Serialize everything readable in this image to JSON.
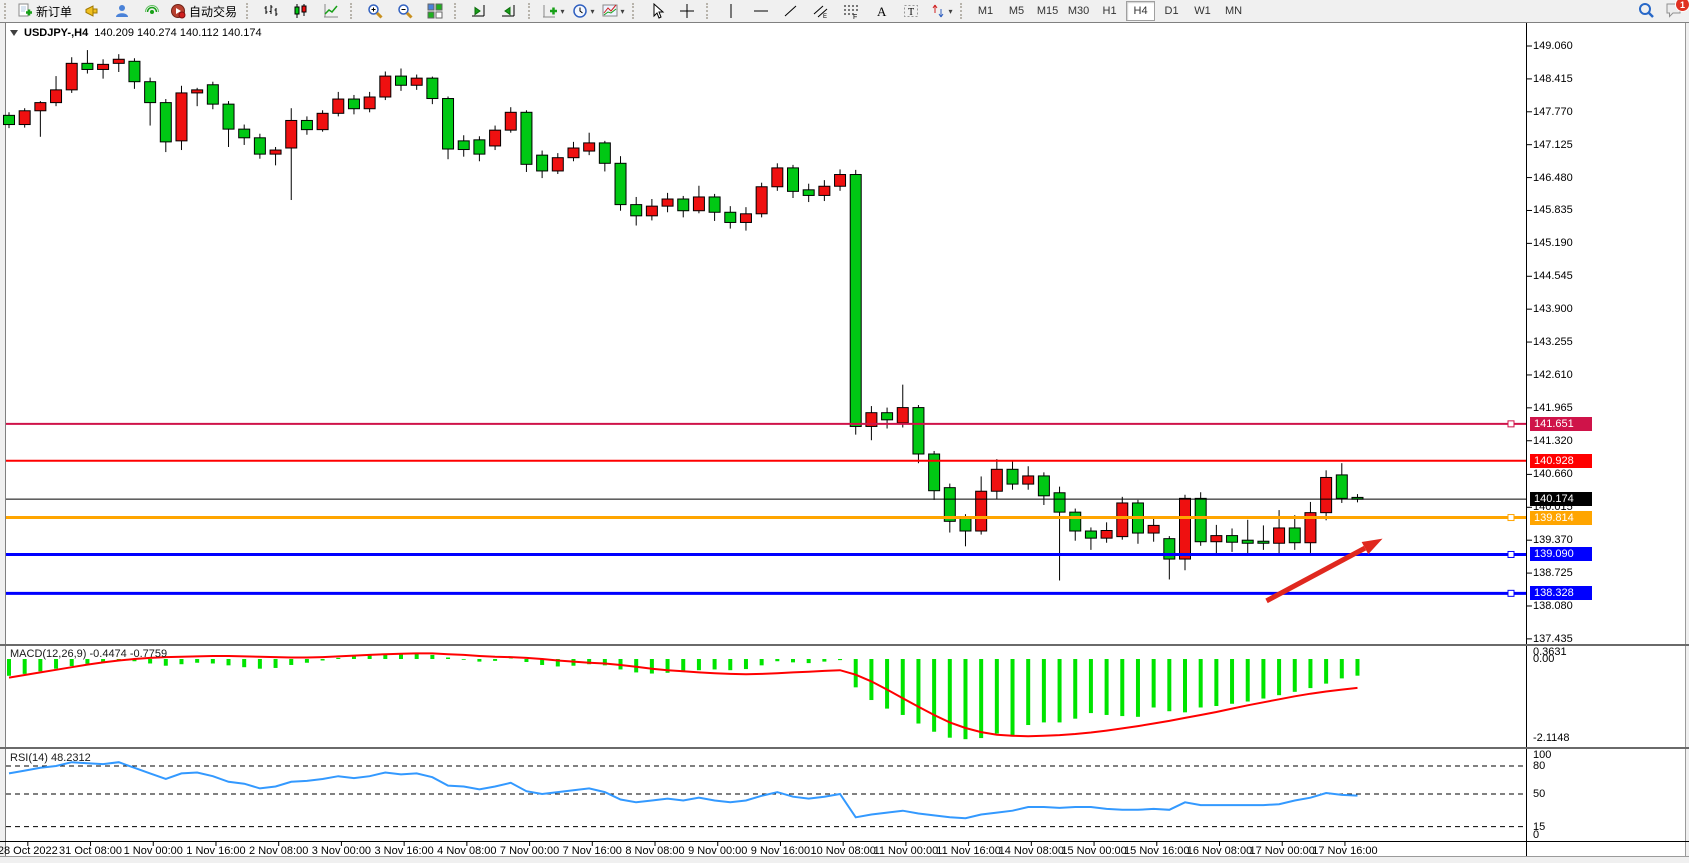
{
  "toolbar": {
    "new_order": "新订单",
    "autotrading": "自动交易",
    "timeframes": [
      "M1",
      "M5",
      "M15",
      "M30",
      "H1",
      "H4",
      "D1",
      "W1",
      "MN"
    ],
    "active_timeframe": "H4",
    "notification_badge": "1"
  },
  "chart_header": {
    "symbol": "USDJPY-,H4",
    "ohlc": "140.209 140.274 140.112 140.174"
  },
  "colors": {
    "candle_up": "#ef1010",
    "candle_down": "#00c814",
    "candle_outline": "#000000",
    "macd_bar": "#00e400",
    "macd_signal": "#ff0000",
    "rsi_line": "#3399ff",
    "arrow": "#e0281e",
    "line_crimson": "#cf1349",
    "line_red": "#ff0000",
    "line_orange": "#ffa500",
    "line_blue": "#0000ff",
    "line_black": "#000000"
  },
  "chart_data": [
    {
      "type": "candlestick",
      "title": "USDJPY- H4",
      "ohlc_current": {
        "open": 140.209,
        "high": 140.274,
        "low": 140.112,
        "close": 140.174
      },
      "y_axis_ticks": [
        "149.060",
        "148.415",
        "147.770",
        "147.125",
        "146.480",
        "145.835",
        "145.190",
        "144.545",
        "143.900",
        "143.255",
        "142.610",
        "141.965",
        "141.320",
        "140.660",
        "140.015",
        "139.370",
        "138.725",
        "138.080",
        "137.435"
      ],
      "ylim": [
        137.34,
        149.41
      ],
      "grid": false,
      "candles": [
        [
          147.7,
          147.76,
          147.45,
          147.52
        ],
        [
          147.52,
          147.84,
          147.46,
          147.79
        ],
        [
          147.79,
          147.98,
          147.28,
          147.95
        ],
        [
          147.95,
          148.47,
          147.88,
          148.2
        ],
        [
          148.2,
          148.84,
          148.14,
          148.72
        ],
        [
          148.72,
          148.98,
          148.52,
          148.6
        ],
        [
          148.6,
          148.8,
          148.42,
          148.7
        ],
        [
          148.72,
          148.9,
          148.55,
          148.8
        ],
        [
          148.76,
          148.82,
          148.22,
          148.36
        ],
        [
          148.36,
          148.44,
          147.5,
          147.95
        ],
        [
          147.95,
          148.02,
          146.98,
          147.18
        ],
        [
          147.2,
          148.28,
          147.02,
          148.14
        ],
        [
          148.14,
          148.24,
          147.88,
          148.2
        ],
        [
          148.3,
          148.36,
          147.82,
          147.92
        ],
        [
          147.92,
          147.98,
          147.08,
          147.43
        ],
        [
          147.43,
          147.52,
          147.12,
          147.26
        ],
        [
          147.26,
          147.34,
          146.85,
          146.94
        ],
        [
          146.94,
          147.08,
          146.72,
          147.02
        ],
        [
          147.06,
          147.84,
          146.04,
          147.6
        ],
        [
          147.6,
          147.68,
          147.32,
          147.42
        ],
        [
          147.42,
          147.8,
          147.38,
          147.74
        ],
        [
          147.74,
          148.16,
          147.68,
          148.02
        ],
        [
          148.02,
          148.1,
          147.72,
          147.83
        ],
        [
          147.83,
          148.16,
          147.76,
          148.06
        ],
        [
          148.06,
          148.56,
          148.0,
          148.47
        ],
        [
          148.47,
          148.62,
          148.18,
          148.29
        ],
        [
          148.29,
          148.5,
          148.2,
          148.43
        ],
        [
          148.43,
          148.46,
          147.92,
          148.03
        ],
        [
          148.03,
          148.07,
          146.84,
          147.04
        ],
        [
          147.2,
          147.31,
          146.89,
          147.03
        ],
        [
          147.22,
          147.29,
          146.8,
          146.94
        ],
        [
          147.1,
          147.5,
          147.02,
          147.41
        ],
        [
          147.41,
          147.86,
          147.36,
          147.76
        ],
        [
          147.76,
          147.8,
          146.59,
          146.74
        ],
        [
          146.92,
          147.01,
          146.47,
          146.61
        ],
        [
          146.61,
          146.96,
          146.55,
          146.87
        ],
        [
          146.87,
          147.18,
          146.8,
          147.06
        ],
        [
          147.0,
          147.36,
          146.92,
          147.16
        ],
        [
          147.16,
          147.2,
          146.6,
          146.76
        ],
        [
          146.76,
          146.9,
          145.83,
          145.95
        ],
        [
          145.95,
          146.1,
          145.54,
          145.73
        ],
        [
          145.73,
          146.06,
          145.64,
          145.92
        ],
        [
          145.92,
          146.18,
          145.8,
          146.06
        ],
        [
          146.06,
          146.12,
          145.7,
          145.83
        ],
        [
          145.83,
          146.32,
          145.78,
          146.1
        ],
        [
          146.1,
          146.16,
          145.63,
          145.8
        ],
        [
          145.8,
          145.92,
          145.48,
          145.6
        ],
        [
          145.6,
          145.9,
          145.44,
          145.77
        ],
        [
          145.77,
          146.38,
          145.7,
          146.3
        ],
        [
          146.3,
          146.76,
          146.22,
          146.67
        ],
        [
          146.67,
          146.73,
          146.08,
          146.21
        ],
        [
          146.24,
          146.36,
          146.0,
          146.13
        ],
        [
          146.13,
          146.43,
          146.02,
          146.31
        ],
        [
          146.31,
          146.64,
          146.22,
          146.54
        ],
        [
          146.54,
          146.63,
          141.44,
          141.6
        ],
        [
          141.6,
          142.0,
          141.33,
          141.87
        ],
        [
          141.87,
          141.97,
          141.56,
          141.73
        ],
        [
          141.67,
          142.42,
          141.58,
          141.97
        ],
        [
          141.97,
          142.02,
          140.88,
          141.06
        ],
        [
          141.06,
          141.12,
          140.16,
          140.34
        ],
        [
          140.4,
          140.48,
          139.52,
          139.74
        ],
        [
          139.8,
          139.88,
          139.25,
          139.55
        ],
        [
          139.55,
          140.62,
          139.48,
          140.33
        ],
        [
          140.33,
          140.96,
          140.18,
          140.76
        ],
        [
          140.76,
          140.92,
          140.36,
          140.47
        ],
        [
          140.47,
          140.82,
          140.36,
          140.63
        ],
        [
          140.63,
          140.7,
          140.06,
          140.24
        ],
        [
          140.3,
          140.42,
          138.58,
          139.92
        ],
        [
          139.92,
          139.99,
          139.36,
          139.55
        ],
        [
          139.55,
          139.62,
          139.18,
          139.41
        ],
        [
          139.41,
          139.72,
          139.32,
          139.56
        ],
        [
          139.44,
          140.22,
          139.38,
          140.1
        ],
        [
          140.1,
          140.16,
          139.3,
          139.51
        ],
        [
          139.51,
          139.82,
          139.34,
          139.66
        ],
        [
          139.4,
          139.45,
          138.6,
          139.0
        ],
        [
          139.0,
          140.26,
          138.78,
          140.19
        ],
        [
          140.19,
          140.31,
          139.26,
          139.34
        ],
        [
          139.34,
          139.67,
          139.08,
          139.46
        ],
        [
          139.46,
          139.6,
          139.14,
          139.33
        ],
        [
          139.37,
          139.77,
          139.08,
          139.31
        ],
        [
          139.35,
          139.66,
          139.18,
          139.31
        ],
        [
          139.31,
          139.96,
          139.08,
          139.61
        ],
        [
          139.61,
          139.86,
          139.18,
          139.32
        ],
        [
          139.32,
          140.12,
          139.12,
          139.91
        ],
        [
          139.91,
          140.74,
          139.76,
          140.6
        ],
        [
          140.65,
          140.88,
          140.1,
          140.19
        ],
        [
          140.209,
          140.274,
          140.112,
          140.174
        ]
      ],
      "horizontal_lines": [
        {
          "price": 141.651,
          "label": "141.651",
          "color": "#cf1349",
          "width": 2,
          "handle": true
        },
        {
          "price": 140.928,
          "label": "140.928",
          "color": "#ff0000",
          "width": 2,
          "handle": false
        },
        {
          "price": 140.174,
          "label": "140.174",
          "color": "#000000",
          "width": 1,
          "handle": false
        },
        {
          "price": 139.814,
          "label": "139.814",
          "color": "#ffa500",
          "width": 3,
          "handle": true
        },
        {
          "price": 139.09,
          "label": "139.090",
          "color": "#0000ff",
          "width": 3,
          "handle": true
        },
        {
          "price": 138.328,
          "label": "138.328",
          "color": "#0000ff",
          "width": 3,
          "handle": true
        }
      ],
      "arrow": {
        "from": {
          "index": 80.2,
          "price": 138.18
        },
        "to": {
          "index": 87.6,
          "price": 139.4
        },
        "color": "#e0281e"
      },
      "x_axis_labels": [
        "28 Oct 2022",
        "31 Oct 08:00",
        "1 Nov 00:00",
        "1 Nov 16:00",
        "2 Nov 08:00",
        "3 Nov 00:00",
        "3 Nov 16:00",
        "4 Nov 08:00",
        "7 Nov 00:00",
        "7 Nov 16:00",
        "8 Nov 08:00",
        "9 Nov 00:00",
        "9 Nov 16:00",
        "10 Nov 08:00",
        "11 Nov 00:00",
        "11 Nov 16:00",
        "14 Nov 08:00",
        "15 Nov 00:00",
        "15 Nov 16:00",
        "16 Nov 08:00",
        "17 Nov 00:00",
        "17 Nov 16:00"
      ],
      "x_tick_first_index": 1.2,
      "x_tick_step": 4
    },
    {
      "type": "macd_histogram",
      "label": "MACD(12,26,9)",
      "current_values": "-0.4474 -0.7759",
      "axis_labels": [
        "0.3631",
        "0.00",
        "-2.1148"
      ],
      "ylim": [
        -2.1148,
        0.3631
      ],
      "histogram": [
        -0.45,
        -0.4,
        -0.33,
        -0.26,
        -0.19,
        -0.13,
        -0.08,
        -0.04,
        -0.06,
        -0.12,
        -0.18,
        -0.14,
        -0.1,
        -0.12,
        -0.17,
        -0.22,
        -0.26,
        -0.24,
        -0.16,
        -0.1,
        -0.04,
        0.03,
        0.07,
        0.1,
        0.14,
        0.16,
        0.15,
        0.11,
        0.04,
        -0.02,
        -0.07,
        -0.05,
        0.01,
        -0.08,
        -0.16,
        -0.2,
        -0.18,
        -0.14,
        -0.17,
        -0.28,
        -0.36,
        -0.39,
        -0.37,
        -0.35,
        -0.3,
        -0.28,
        -0.3,
        -0.27,
        -0.17,
        -0.06,
        -0.09,
        -0.11,
        -0.07,
        -0.03,
        -0.76,
        -1.1,
        -1.33,
        -1.5,
        -1.73,
        -1.95,
        -2.11,
        -2.15,
        -2.12,
        -2.0,
        -2.08,
        -1.77,
        -1.7,
        -1.7,
        -1.6,
        -1.45,
        -1.5,
        -1.53,
        -1.55,
        -1.3,
        -1.4,
        -1.43,
        -1.3,
        -1.26,
        -1.2,
        -1.14,
        -1.06,
        -0.97,
        -0.88,
        -0.78,
        -0.66,
        -0.52,
        -0.4474
      ],
      "signal": [
        -0.5,
        -0.43,
        -0.36,
        -0.29,
        -0.22,
        -0.15,
        -0.09,
        -0.04,
        0.0,
        0.03,
        0.05,
        0.06,
        0.07,
        0.08,
        0.08,
        0.07,
        0.06,
        0.05,
        0.04,
        0.04,
        0.05,
        0.07,
        0.09,
        0.11,
        0.13,
        0.14,
        0.15,
        0.15,
        0.13,
        0.11,
        0.08,
        0.06,
        0.05,
        0.03,
        0.0,
        -0.04,
        -0.07,
        -0.1,
        -0.12,
        -0.16,
        -0.21,
        -0.26,
        -0.3,
        -0.33,
        -0.36,
        -0.38,
        -0.4,
        -0.41,
        -0.4,
        -0.38,
        -0.36,
        -0.34,
        -0.32,
        -0.3,
        -0.42,
        -0.6,
        -0.82,
        -1.05,
        -1.28,
        -1.5,
        -1.7,
        -1.85,
        -1.96,
        -2.03,
        -2.06,
        -2.07,
        -2.06,
        -2.04,
        -2.01,
        -1.97,
        -1.92,
        -1.86,
        -1.8,
        -1.73,
        -1.66,
        -1.58,
        -1.5,
        -1.42,
        -1.33,
        -1.24,
        -1.16,
        -1.08,
        -1.0,
        -0.93,
        -0.87,
        -0.82,
        -0.7759
      ]
    },
    {
      "type": "rsi_line",
      "label": "RSI(14)",
      "current_value": "48.2312",
      "range": [
        0,
        100
      ],
      "levels": [
        {
          "value": 100,
          "label": "100"
        },
        {
          "value": 80,
          "label": "80"
        },
        {
          "value": 50,
          "label": "50"
        },
        {
          "value": 15,
          "label": "15"
        },
        {
          "value": 0,
          "label": "0"
        }
      ],
      "values": [
        72,
        75,
        78,
        80,
        84,
        83,
        82,
        84,
        78,
        72,
        66,
        72,
        73,
        69,
        63,
        61,
        56,
        58,
        63,
        64,
        66,
        69,
        67,
        69,
        73,
        71,
        72,
        68,
        59,
        58,
        55,
        58,
        62,
        53,
        50,
        52,
        54,
        56,
        52,
        44,
        41,
        43,
        45,
        43,
        46,
        43,
        41,
        43,
        48,
        52,
        47,
        45,
        47,
        50,
        25,
        28,
        30,
        32,
        29,
        27,
        25,
        24,
        28,
        30,
        32,
        36,
        36,
        35,
        36,
        36,
        34,
        33,
        33,
        34,
        33,
        41,
        38,
        38,
        38,
        38,
        38,
        39,
        43,
        46,
        51,
        49,
        48.23
      ]
    }
  ]
}
